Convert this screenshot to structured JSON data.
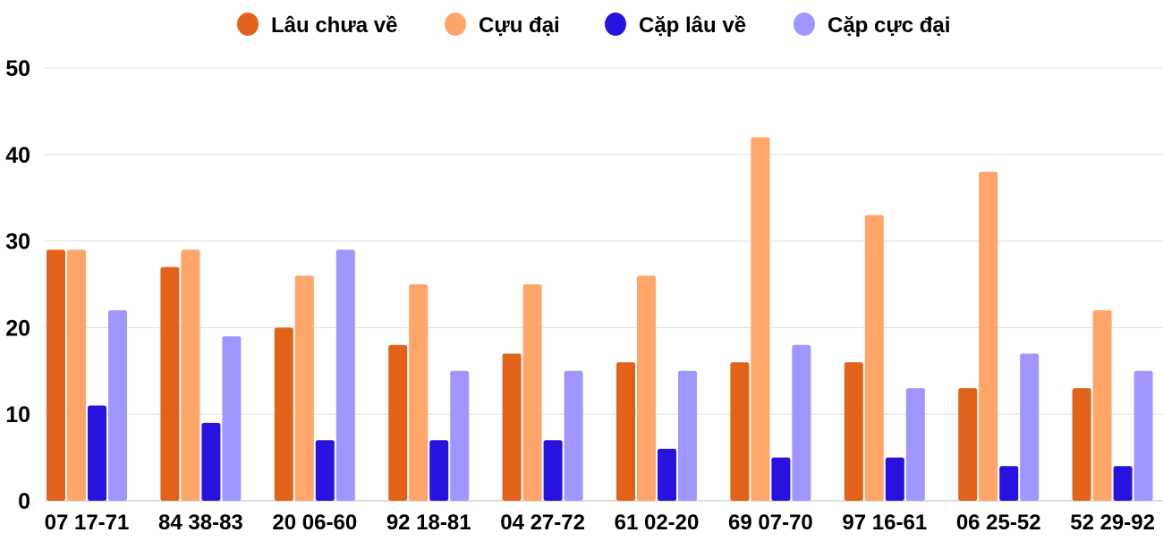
{
  "chart_data": {
    "type": "bar",
    "title": "",
    "xlabel": "",
    "ylabel": "",
    "ylim": [
      0,
      50
    ],
    "yticks": [
      0,
      10,
      20,
      30,
      40,
      50
    ],
    "grid": true,
    "legend_position": "top",
    "categories": [
      "07 17-71",
      "84 38-83",
      "20 06-60",
      "92 18-81",
      "04 27-72",
      "61 02-20",
      "69 07-70",
      "97 16-61",
      "06 25-52",
      "52 29-92"
    ],
    "series": [
      {
        "name": "Lâu chưa về",
        "color": "#E3621A",
        "values": [
          29,
          27,
          20,
          18,
          17,
          16,
          16,
          16,
          13,
          13
        ]
      },
      {
        "name": "Cựu đại",
        "color": "#FFA56A",
        "values": [
          29,
          29,
          26,
          25,
          25,
          26,
          42,
          33,
          38,
          22
        ]
      },
      {
        "name": "Cặp lâu về",
        "color": "#2712E0",
        "values": [
          11,
          9,
          7,
          7,
          7,
          6,
          5,
          5,
          4,
          4
        ]
      },
      {
        "name": "Cặp cực đại",
        "color": "#A096FF",
        "values": [
          22,
          19,
          29,
          15,
          15,
          15,
          18,
          13,
          17,
          15
        ]
      }
    ]
  }
}
